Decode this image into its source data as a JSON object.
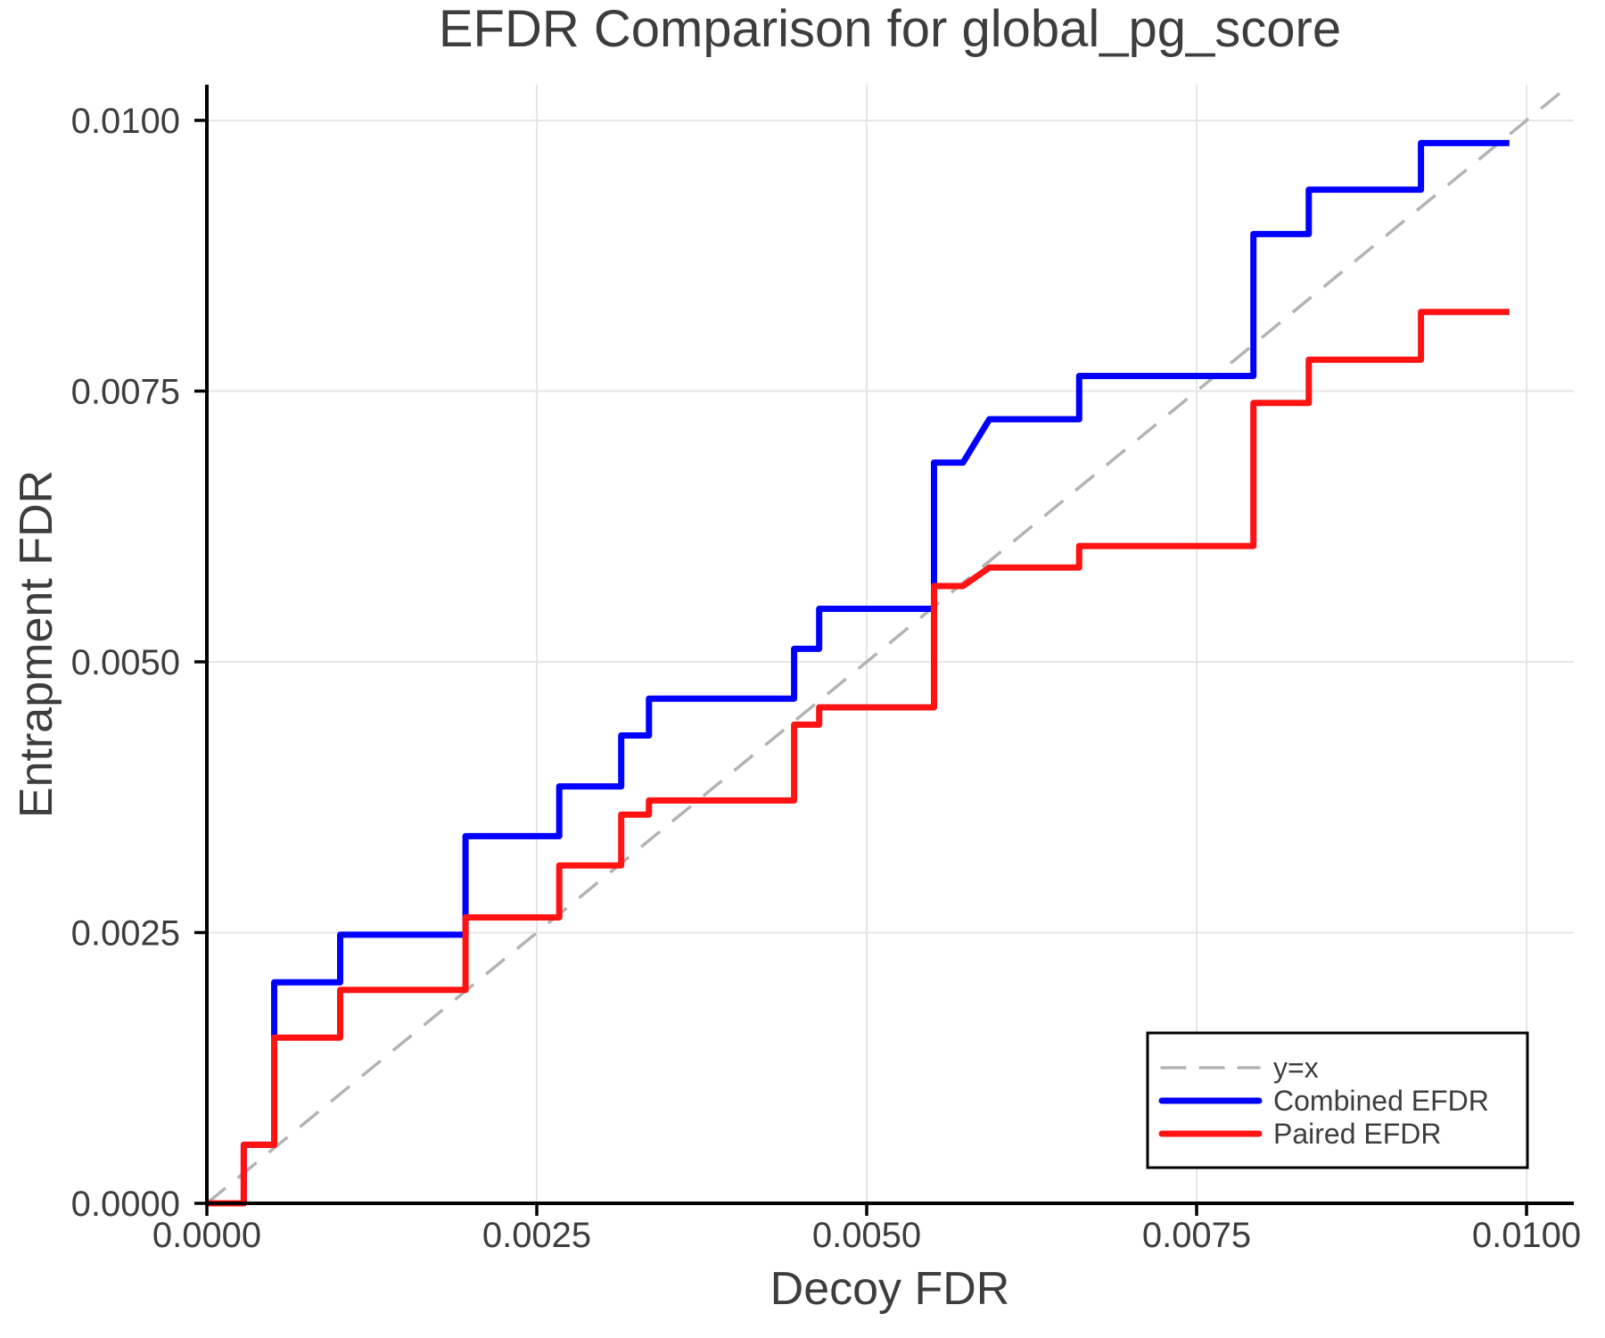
{
  "styles": {
    "background": "#ffffff",
    "text_color": "#3d3d3d",
    "spine_color": "#000000",
    "grid_color": "#e6e6e6",
    "reference_line_color": "#b3b3b3",
    "combined_efdr_color": "#0000ff",
    "paired_efdr_color": "#ff1212",
    "legend_border_color": "#000000",
    "legend_background": "#ffffff"
  },
  "chart_data": {
    "type": "line",
    "title": "EFDR Comparison for global_pg_score",
    "xlabel": "Decoy FDR",
    "ylabel": "Entrapment FDR",
    "xlim": [
      0,
      0.010358
    ],
    "ylim": [
      0,
      0.010329
    ],
    "grid": true,
    "legend_position": "lower right",
    "xticks": {
      "values": [
        0,
        0.0025,
        0.005,
        0.0075,
        0.01
      ],
      "labels": [
        "0.0000",
        "0.0025",
        "0.0050",
        "0.0075",
        "0.0100"
      ]
    },
    "yticks": {
      "values": [
        0,
        0.0025,
        0.005,
        0.0075,
        0.01
      ],
      "labels": [
        "0.0000",
        "0.0025",
        "0.0050",
        "0.0075",
        "0.0100"
      ]
    },
    "series": [
      {
        "name": "y=x",
        "role": "reference-diagonal",
        "color": "#b3b3b3",
        "dashed": true,
        "width": 3.5,
        "points": [
          [
            0,
            0
          ],
          [
            0.01033,
            0.01033
          ]
        ]
      },
      {
        "name": "Combined EFDR",
        "role": "data-series",
        "color": "#0000ff",
        "dashed": false,
        "width": 7,
        "points": [
          [
            0.0,
            0.0
          ],
          [
            0.00028,
            0.0
          ],
          [
            0.00028,
            0.00054
          ],
          [
            0.00051,
            0.00054
          ],
          [
            0.00051,
            0.00204
          ],
          [
            0.00101,
            0.00204
          ],
          [
            0.00101,
            0.00248
          ],
          [
            0.00196,
            0.00248
          ],
          [
            0.00196,
            0.00339
          ],
          [
            0.00267,
            0.00339
          ],
          [
            0.00267,
            0.00385
          ],
          [
            0.00314,
            0.00385
          ],
          [
            0.00314,
            0.00432
          ],
          [
            0.00335,
            0.00432
          ],
          [
            0.00335,
            0.00466
          ],
          [
            0.00445,
            0.00466
          ],
          [
            0.00445,
            0.00512
          ],
          [
            0.00464,
            0.00512
          ],
          [
            0.00464,
            0.00549
          ],
          [
            0.00551,
            0.00549
          ],
          [
            0.00551,
            0.00684
          ],
          [
            0.00573,
            0.00684
          ],
          [
            0.00593,
            0.00724
          ],
          [
            0.00661,
            0.00724
          ],
          [
            0.00661,
            0.00764
          ],
          [
            0.00793,
            0.00764
          ],
          [
            0.00793,
            0.00895
          ],
          [
            0.00835,
            0.00895
          ],
          [
            0.00835,
            0.00936
          ],
          [
            0.0092,
            0.00936
          ],
          [
            0.0092,
            0.00979
          ],
          [
            0.00987,
            0.00979
          ]
        ]
      },
      {
        "name": "Paired EFDR",
        "role": "data-series",
        "color": "#ff1212",
        "dashed": false,
        "width": 7,
        "points": [
          [
            0.0,
            0.0
          ],
          [
            0.00028,
            0.0
          ],
          [
            0.00028,
            0.00054
          ],
          [
            0.00051,
            0.00054
          ],
          [
            0.00051,
            0.00153
          ],
          [
            0.00101,
            0.00153
          ],
          [
            0.00101,
            0.00197
          ],
          [
            0.00196,
            0.00197
          ],
          [
            0.00196,
            0.00264
          ],
          [
            0.00267,
            0.00264
          ],
          [
            0.00267,
            0.00312
          ],
          [
            0.00314,
            0.00312
          ],
          [
            0.00314,
            0.00359
          ],
          [
            0.00335,
            0.00359
          ],
          [
            0.00335,
            0.00372
          ],
          [
            0.00445,
            0.00372
          ],
          [
            0.00445,
            0.00442
          ],
          [
            0.00464,
            0.00442
          ],
          [
            0.00464,
            0.00458
          ],
          [
            0.00551,
            0.00458
          ],
          [
            0.00551,
            0.0057
          ],
          [
            0.00573,
            0.0057
          ],
          [
            0.00593,
            0.00587
          ],
          [
            0.00661,
            0.00587
          ],
          [
            0.00661,
            0.00607
          ],
          [
            0.00793,
            0.00607
          ],
          [
            0.00793,
            0.00739
          ],
          [
            0.00835,
            0.00739
          ],
          [
            0.00835,
            0.00779
          ],
          [
            0.0092,
            0.00779
          ],
          [
            0.0092,
            0.00823
          ],
          [
            0.00987,
            0.00823
          ]
        ]
      }
    ]
  }
}
